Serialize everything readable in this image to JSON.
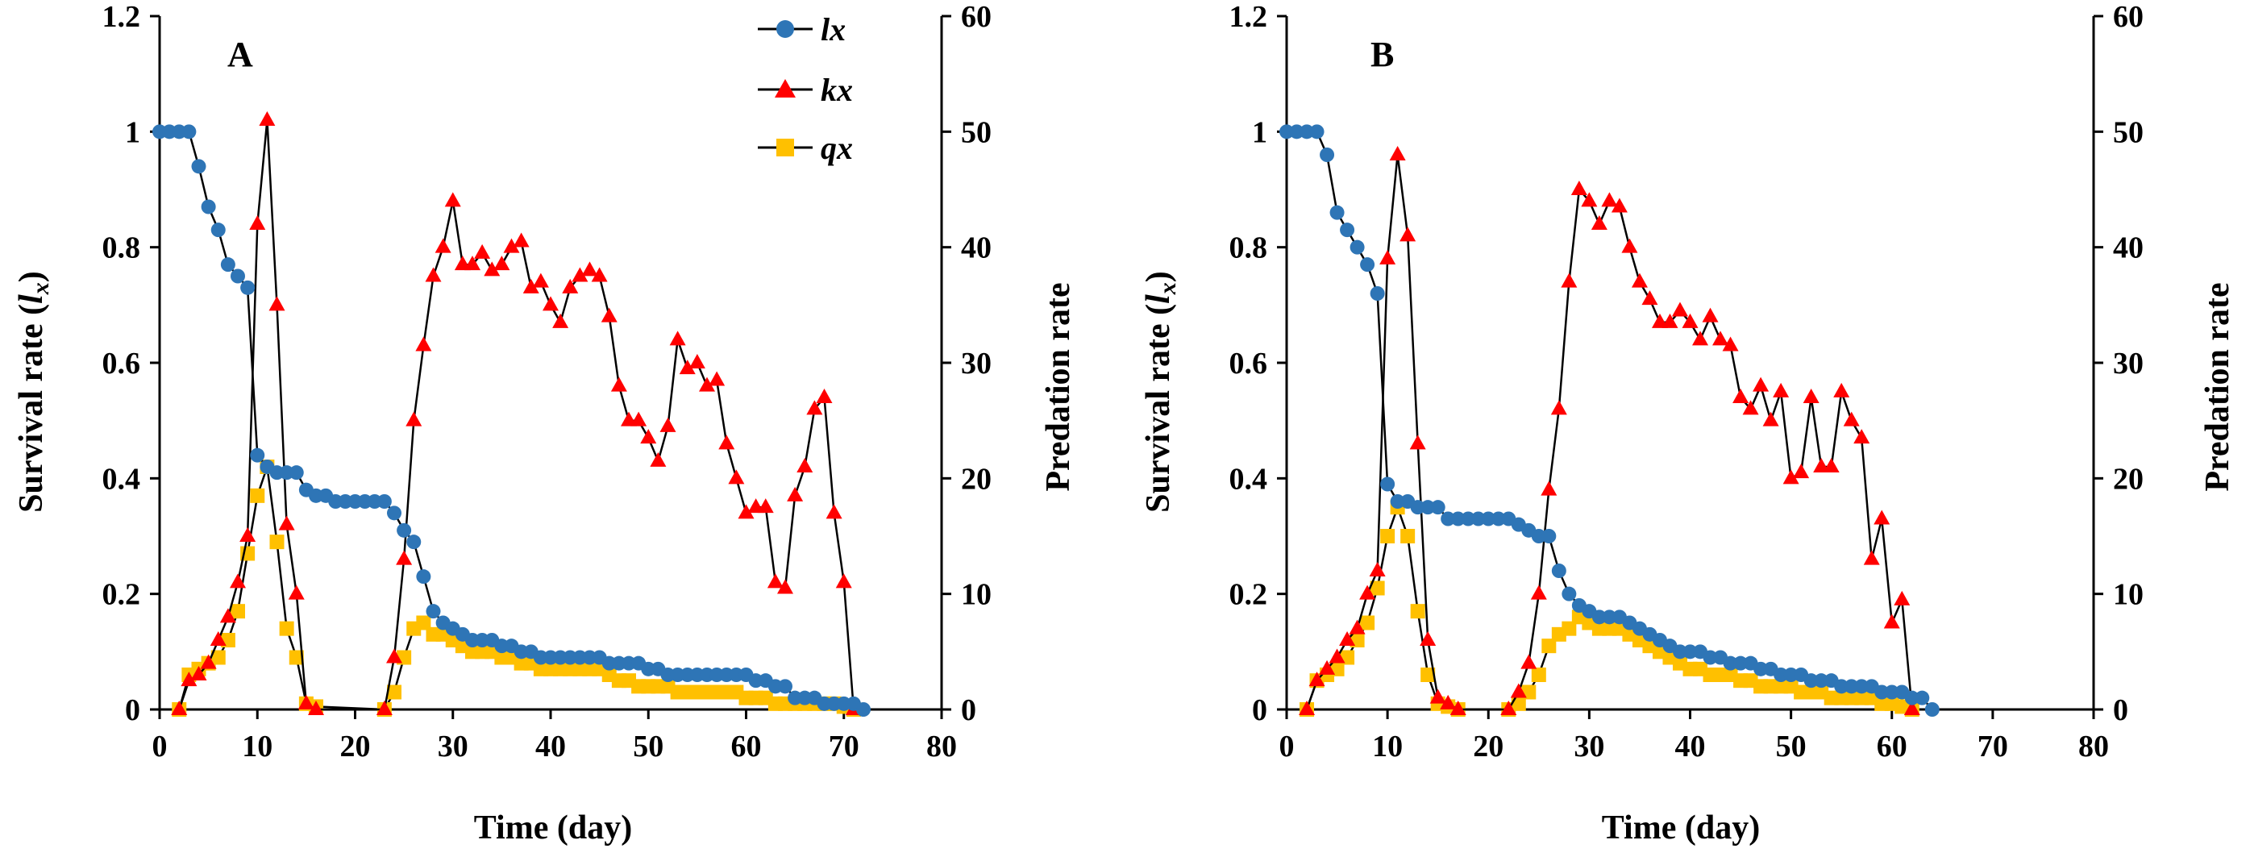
{
  "figure": {
    "colors": {
      "lx": "#2e75b6",
      "kx": "#ff0000",
      "qx": "#ffc000",
      "axis": "#000000",
      "line": "#000000"
    },
    "legend": [
      {
        "key": "lx",
        "label": "lx",
        "marker": "circle"
      },
      {
        "key": "kx",
        "label": "kx",
        "marker": "triangle"
      },
      {
        "key": "qx",
        "label": "qx",
        "marker": "square"
      }
    ]
  },
  "chart_data": [
    {
      "type": "line",
      "panel_label": "A",
      "xlabel": "Time (day)",
      "ylabel_left_main": "Survival rate (",
      "ylabel_left_sym": "l",
      "ylabel_left_sub": "x",
      "ylabel_left_end": ")",
      "ylabel_right": "Predation rate",
      "xlim": [
        0,
        80
      ],
      "ylim_left": [
        0,
        1.2
      ],
      "ylim_right": [
        0,
        60
      ],
      "x_ticks": [
        "0",
        "10",
        "20",
        "30",
        "40",
        "50",
        "60",
        "70",
        "80"
      ],
      "y_left_ticks": [
        "0",
        "0.2",
        "0.4",
        "0.6",
        "0.8",
        "1",
        "1.2"
      ],
      "y_right_ticks": [
        "0",
        "10",
        "20",
        "30",
        "40",
        "50",
        "60"
      ],
      "series": [
        {
          "name": "lx",
          "axis": "left",
          "x": [
            0,
            1,
            2,
            3,
            4,
            5,
            6,
            7,
            8,
            9,
            10,
            11,
            12,
            13,
            14,
            15,
            16,
            17,
            18,
            19,
            20,
            21,
            22,
            23,
            24,
            25,
            26,
            27,
            28,
            29,
            30,
            31,
            32,
            33,
            34,
            35,
            36,
            37,
            38,
            39,
            40,
            41,
            42,
            43,
            44,
            45,
            46,
            47,
            48,
            49,
            50,
            51,
            52,
            53,
            54,
            55,
            56,
            57,
            58,
            59,
            60,
            61,
            62,
            63,
            64,
            65,
            66,
            67,
            68,
            69,
            70,
            71,
            72
          ],
          "y": [
            1,
            1,
            1,
            1,
            0.94,
            0.87,
            0.83,
            0.77,
            0.75,
            0.73,
            0.44,
            0.42,
            0.41,
            0.41,
            0.41,
            0.38,
            0.37,
            0.37,
            0.36,
            0.36,
            0.36,
            0.36,
            0.36,
            0.36,
            0.34,
            0.31,
            0.29,
            0.23,
            0.17,
            0.15,
            0.14,
            0.13,
            0.12,
            0.12,
            0.12,
            0.11,
            0.11,
            0.1,
            0.1,
            0.09,
            0.09,
            0.09,
            0.09,
            0.09,
            0.09,
            0.09,
            0.08,
            0.08,
            0.08,
            0.08,
            0.07,
            0.07,
            0.06,
            0.06,
            0.06,
            0.06,
            0.06,
            0.06,
            0.06,
            0.06,
            0.06,
            0.05,
            0.05,
            0.04,
            0.04,
            0.02,
            0.02,
            0.02,
            0.01,
            0.01,
            0.01,
            0.01,
            0
          ]
        },
        {
          "name": "kx",
          "axis": "right",
          "x": [
            2,
            3,
            4,
            5,
            6,
            7,
            8,
            9,
            10,
            11,
            12,
            13,
            14,
            15,
            16,
            23,
            24,
            25,
            26,
            27,
            28,
            29,
            30,
            31,
            32,
            33,
            34,
            35,
            36,
            37,
            38,
            39,
            40,
            41,
            42,
            43,
            44,
            45,
            46,
            47,
            48,
            49,
            50,
            51,
            52,
            53,
            54,
            55,
            56,
            57,
            58,
            59,
            60,
            61,
            62,
            63,
            64,
            65,
            66,
            67,
            68,
            69,
            70,
            71
          ],
          "y": [
            0,
            2.5,
            3,
            4,
            6,
            8,
            11,
            15,
            42,
            51,
            35,
            16,
            10,
            0.5,
            0,
            0,
            4.5,
            13,
            25,
            31.5,
            37.5,
            40,
            44,
            38.5,
            38.5,
            39.5,
            38,
            38.5,
            40,
            40.5,
            36.5,
            37,
            35,
            33.5,
            36.5,
            37.5,
            38,
            37.5,
            34,
            28,
            25,
            25,
            23.5,
            21.5,
            24.5,
            32,
            29.5,
            30,
            28,
            28.5,
            23,
            20,
            17,
            17.5,
            17.5,
            11,
            10.5,
            18.5,
            21,
            26,
            27,
            17,
            11,
            0
          ]
        },
        {
          "name": "qx",
          "axis": "left",
          "x": [
            2,
            3,
            4,
            5,
            6,
            7,
            8,
            9,
            10,
            11,
            12,
            13,
            14,
            15,
            16,
            23,
            24,
            25,
            26,
            27,
            28,
            29,
            30,
            31,
            32,
            33,
            34,
            35,
            36,
            37,
            38,
            39,
            40,
            41,
            42,
            43,
            44,
            45,
            46,
            47,
            48,
            49,
            50,
            51,
            52,
            53,
            54,
            55,
            56,
            57,
            58,
            59,
            60,
            61,
            62,
            63,
            64,
            65,
            66,
            67,
            68,
            69,
            70,
            71
          ],
          "y": [
            0,
            0.06,
            0.07,
            0.08,
            0.09,
            0.12,
            0.17,
            0.27,
            0.37,
            0.42,
            0.29,
            0.14,
            0.09,
            0.01,
            0.005,
            0,
            0.03,
            0.09,
            0.14,
            0.15,
            0.13,
            0.13,
            0.12,
            0.11,
            0.1,
            0.1,
            0.1,
            0.09,
            0.09,
            0.08,
            0.08,
            0.07,
            0.07,
            0.07,
            0.07,
            0.07,
            0.07,
            0.07,
            0.06,
            0.05,
            0.05,
            0.04,
            0.04,
            0.04,
            0.04,
            0.03,
            0.03,
            0.03,
            0.03,
            0.03,
            0.03,
            0.03,
            0.02,
            0.02,
            0.02,
            0.01,
            0.01,
            0.01,
            0.01,
            0.01,
            0.01,
            0.01,
            0.005,
            0
          ]
        }
      ]
    },
    {
      "type": "line",
      "panel_label": "B",
      "xlabel": "Time (day)",
      "ylabel_left_main": "Survival rate (",
      "ylabel_left_sym": "l",
      "ylabel_left_sub": "x",
      "ylabel_left_end": ")",
      "ylabel_right": "Predation rate",
      "xlim": [
        0,
        80
      ],
      "ylim_left": [
        0,
        1.2
      ],
      "ylim_right": [
        0,
        60
      ],
      "x_ticks": [
        "0",
        "10",
        "20",
        "30",
        "40",
        "50",
        "60",
        "70",
        "80"
      ],
      "y_left_ticks": [
        "0",
        "0.2",
        "0.4",
        "0.6",
        "0.8",
        "1",
        "1.2"
      ],
      "y_right_ticks": [
        "0",
        "10",
        "20",
        "30",
        "40",
        "50",
        "60"
      ],
      "series": [
        {
          "name": "lx",
          "axis": "left",
          "x": [
            0,
            1,
            2,
            3,
            4,
            5,
            6,
            7,
            8,
            9,
            10,
            11,
            12,
            13,
            14,
            15,
            16,
            17,
            18,
            19,
            20,
            21,
            22,
            23,
            24,
            25,
            26,
            27,
            28,
            29,
            30,
            31,
            32,
            33,
            34,
            35,
            36,
            37,
            38,
            39,
            40,
            41,
            42,
            43,
            44,
            45,
            46,
            47,
            48,
            49,
            50,
            51,
            52,
            53,
            54,
            55,
            56,
            57,
            58,
            59,
            60,
            61,
            62,
            63,
            64
          ],
          "y": [
            1,
            1,
            1,
            1,
            0.96,
            0.86,
            0.83,
            0.8,
            0.77,
            0.72,
            0.39,
            0.36,
            0.36,
            0.35,
            0.35,
            0.35,
            0.33,
            0.33,
            0.33,
            0.33,
            0.33,
            0.33,
            0.33,
            0.32,
            0.31,
            0.3,
            0.3,
            0.24,
            0.2,
            0.18,
            0.17,
            0.16,
            0.16,
            0.16,
            0.15,
            0.14,
            0.13,
            0.12,
            0.11,
            0.1,
            0.1,
            0.1,
            0.09,
            0.09,
            0.08,
            0.08,
            0.08,
            0.07,
            0.07,
            0.06,
            0.06,
            0.06,
            0.05,
            0.05,
            0.05,
            0.04,
            0.04,
            0.04,
            0.04,
            0.03,
            0.03,
            0.03,
            0.02,
            0.02,
            0
          ]
        },
        {
          "name": "kx",
          "axis": "right",
          "x": [
            2,
            3,
            4,
            5,
            6,
            7,
            8,
            9,
            10,
            11,
            12,
            13,
            14,
            15,
            16,
            17,
            22,
            23,
            24,
            25,
            26,
            27,
            28,
            29,
            30,
            31,
            32,
            33,
            34,
            35,
            36,
            37,
            38,
            39,
            40,
            41,
            42,
            43,
            44,
            45,
            46,
            47,
            48,
            49,
            50,
            51,
            52,
            53,
            54,
            55,
            56,
            57,
            58,
            59,
            60,
            61,
            62
          ],
          "y": [
            0,
            2.5,
            3.5,
            4.5,
            6,
            7,
            10,
            12,
            39,
            48,
            41,
            23,
            6,
            1,
            0.5,
            0,
            0,
            1.5,
            4,
            10,
            19,
            26,
            37,
            45,
            44,
            42,
            44,
            43.5,
            40,
            37,
            35.5,
            33.5,
            33.5,
            34.5,
            33.5,
            32,
            34,
            32,
            31.5,
            27,
            26,
            28,
            25,
            27.5,
            20,
            20.5,
            27,
            21,
            21,
            27.5,
            25,
            23.5,
            13,
            16.5,
            7.5,
            9.5,
            0
          ]
        },
        {
          "name": "qx",
          "axis": "left",
          "x": [
            2,
            3,
            4,
            5,
            6,
            7,
            8,
            9,
            10,
            11,
            12,
            13,
            14,
            15,
            16,
            17,
            22,
            23,
            24,
            25,
            26,
            27,
            28,
            29,
            30,
            31,
            32,
            33,
            34,
            35,
            36,
            37,
            38,
            39,
            40,
            41,
            42,
            43,
            44,
            45,
            46,
            47,
            48,
            49,
            50,
            51,
            52,
            53,
            54,
            55,
            56,
            57,
            58,
            59,
            60,
            61,
            62
          ],
          "y": [
            0,
            0.05,
            0.06,
            0.07,
            0.09,
            0.12,
            0.15,
            0.21,
            0.3,
            0.35,
            0.3,
            0.17,
            0.06,
            0.01,
            0.005,
            0,
            0,
            0.01,
            0.03,
            0.06,
            0.11,
            0.13,
            0.14,
            0.16,
            0.15,
            0.14,
            0.14,
            0.14,
            0.13,
            0.12,
            0.11,
            0.1,
            0.09,
            0.08,
            0.07,
            0.07,
            0.06,
            0.06,
            0.06,
            0.05,
            0.05,
            0.04,
            0.04,
            0.04,
            0.04,
            0.03,
            0.03,
            0.03,
            0.02,
            0.02,
            0.02,
            0.02,
            0.02,
            0.01,
            0.01,
            0.005,
            0
          ]
        }
      ]
    }
  ]
}
